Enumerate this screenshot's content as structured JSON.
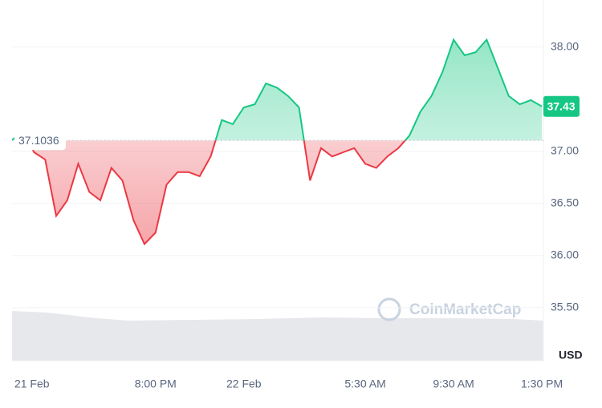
{
  "chart_data": {
    "type": "line",
    "x": [
      0,
      0.5,
      1,
      1.5,
      2,
      2.5,
      3,
      3.5,
      4,
      4.5,
      5,
      5.5,
      6,
      6.5,
      7,
      7.5,
      8,
      8.5,
      9,
      9.5,
      10,
      10.5,
      11,
      11.5,
      12,
      12.5,
      13,
      13.5,
      14,
      14.5,
      15,
      15.5,
      16,
      16.5,
      17,
      17.5,
      18,
      18.5,
      19,
      19.5,
      20,
      20.5,
      21,
      21.5,
      22,
      22.5,
      23,
      23.5,
      24
    ],
    "values": [
      37.11,
      37.18,
      36.99,
      36.92,
      36.38,
      36.53,
      36.88,
      36.61,
      36.53,
      36.84,
      36.72,
      36.34,
      36.11,
      36.22,
      36.68,
      36.8,
      36.8,
      36.76,
      36.95,
      37.3,
      37.26,
      37.42,
      37.45,
      37.65,
      37.61,
      37.53,
      37.42,
      36.72,
      37.03,
      36.95,
      36.99,
      37.03,
      36.88,
      36.84,
      36.95,
      37.03,
      37.15,
      37.38,
      37.53,
      37.76,
      38.07,
      37.92,
      37.95,
      38.07,
      37.8,
      37.53,
      37.45,
      37.49,
      37.43
    ],
    "baseline": 37.1036,
    "up_color": "#16c784",
    "down_color": "#ea3943",
    "xlim": [
      0,
      24.07
    ],
    "xticks": [
      {
        "value": 0.9,
        "label": "21 Feb"
      },
      {
        "value": 6.5,
        "label": "8:00 PM"
      },
      {
        "value": 10.5,
        "label": "22 Feb"
      },
      {
        "value": 16,
        "label": "5:30 AM"
      },
      {
        "value": 20,
        "label": "9:30 AM"
      },
      {
        "value": 24,
        "label": "1:30 PM"
      }
    ],
    "ylim": [
      35.0,
      38.45
    ],
    "yticks": [
      {
        "value": 35.5,
        "label": "35.50"
      },
      {
        "value": 36,
        "label": "36.00"
      },
      {
        "value": 36.5,
        "label": "36.50"
      },
      {
        "value": 37,
        "label": "37.00"
      },
      {
        "value": 38,
        "label": "38.00"
      }
    ],
    "grid": true,
    "currency": "USD",
    "watermark": "CoinMarketCap"
  }
}
